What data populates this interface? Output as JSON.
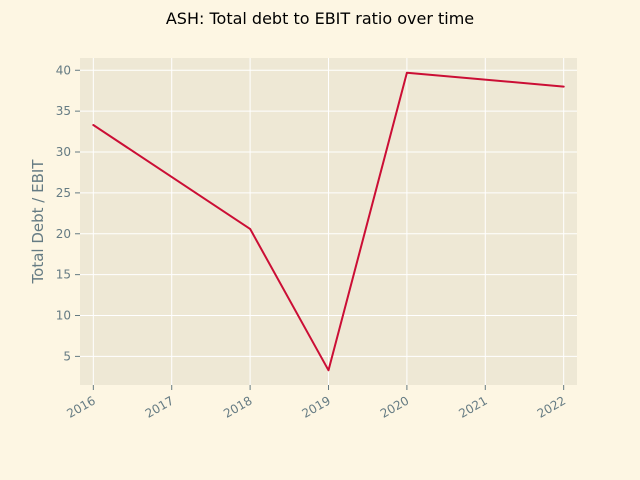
{
  "chart_data": {
    "type": "line",
    "title": "ASH: Total debt to EBIT ratio over time",
    "xlabel": "",
    "ylabel": "Total Debt / EBIT",
    "x": [
      "2016",
      "2017",
      "2018",
      "2019",
      "2020",
      "2021",
      "2022"
    ],
    "series": [
      {
        "name": "Total Debt / EBIT",
        "points": [
          {
            "x": 2016,
            "y": 33.3
          },
          {
            "x": 2018,
            "y": 20.6
          },
          {
            "x": 2019,
            "y": 3.3
          },
          {
            "x": 2020,
            "y": 39.7
          },
          {
            "x": 2022,
            "y": 38.0
          }
        ]
      }
    ],
    "xlim": [
      2015.83,
      2022.17
    ],
    "ylim": [
      1.5,
      41.5
    ],
    "yticks": [
      5,
      10,
      15,
      20,
      25,
      30,
      35,
      40
    ],
    "xticks": [
      2016,
      2017,
      2018,
      2019,
      2020,
      2021,
      2022
    ],
    "grid": true,
    "colors": {
      "background": "#fdf6e3",
      "plot_background": "#eee8d5",
      "grid": "#ffffff",
      "line": "#cb0e35",
      "tick_text": "#657b83"
    }
  }
}
